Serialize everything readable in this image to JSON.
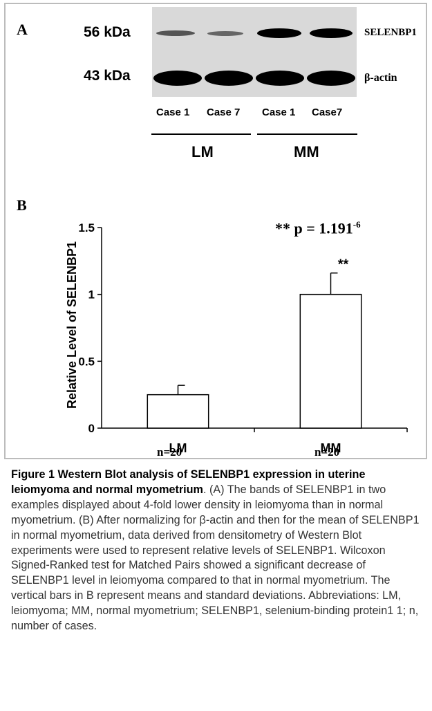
{
  "panel_a": {
    "letter": "A",
    "mw_top": "56 kDa",
    "mw_bottom": "43 kDa",
    "protein_top": "SELENBP1",
    "protein_bottom": "β-actin",
    "lanes": [
      "Case 1",
      "Case 7",
      "Case 1",
      "Case7"
    ],
    "groups": [
      "LM",
      "MM"
    ]
  },
  "panel_b": {
    "letter": "B",
    "significance": "** p = 1.191",
    "significance_exp": "-6",
    "bar_star": "**",
    "n_labels": [
      "n=20",
      "n=20"
    ]
  },
  "chart_data": {
    "type": "bar",
    "categories": [
      "LM",
      "MM"
    ],
    "values": [
      0.25,
      1.0
    ],
    "error": [
      0.07,
      0.16
    ],
    "ylabel": "Relative Level of SELENBP1",
    "ylim": [
      0,
      1.5
    ],
    "yticks": [
      "0",
      "0.5",
      "1",
      "1.5"
    ],
    "grid": false,
    "bar_fill": "#ffffff",
    "bar_stroke": "#000000"
  },
  "caption": {
    "title": "Figure 1 Western Blot analysis of SELENBP1 expression in uterine leiomyoma and normal myometrium",
    "body": ". (A) The bands of SELENBP1 in two examples displayed about 4-fold lower density in leiomyoma than in normal myometrium. (B) After normalizing for β-actin and then for the mean of SELENBP1 in normal myometrium, data derived from densitometry of Western Blot experiments were used to represent relative levels of SELENBP1. Wilcoxon Signed-Ranked test for Matched Pairs showed a significant decrease of SELENBP1 level in leiomyoma compared to that in normal myometrium. The vertical bars in B represent means and standard deviations. Abbreviations: LM, leiomyoma; MM, normal myometrium; SELENBP1, selenium-binding protein1 1; n, number of cases."
  }
}
